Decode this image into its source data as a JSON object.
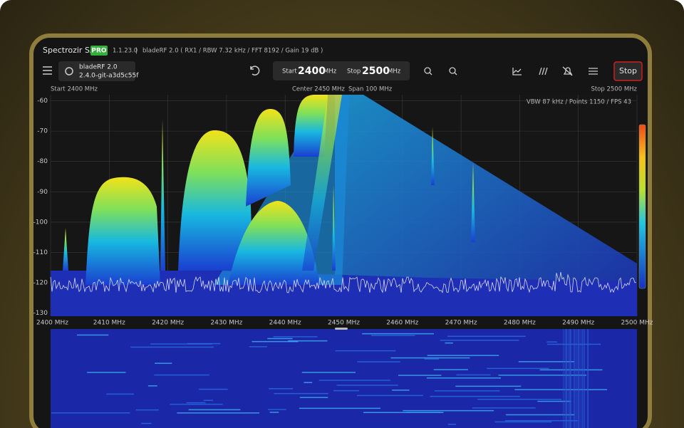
{
  "titlebar": {
    "app": "Spectrozir SA",
    "badge": "PRO",
    "version": "1.1.23.0",
    "separator": "|",
    "device_info": "bladeRF 2.0  ( RX1 / RBW 7.32 kHz / FFT 8192 / Gain 19 dB )"
  },
  "toolbar": {
    "device_name": "bladeRF 2.0",
    "device_version": "2.4.0-git-a3d5c55f",
    "start_label": "Start",
    "start_value": "2400",
    "start_unit": "MHz",
    "stop_label": "Stop",
    "stop_value": "2500",
    "stop_unit": "MHz",
    "stop_button": "Stop"
  },
  "info": {
    "start": "Start 2400 MHz",
    "center": "Center 2450 MHz",
    "span": "Span 100 MHz",
    "stop": "Stop 2500 MHz",
    "stats": "VBW 87 kHz / Points 1150 / FPS 43"
  },
  "spectrum": {
    "xlim": [
      2400,
      2500
    ],
    "ylim": [
      -131,
      -58
    ],
    "yticks": [
      -60,
      -70,
      -80,
      -90,
      -100,
      -110,
      -120,
      -130
    ],
    "xticks": [
      {
        "value": 2400,
        "label": "2400 MHz"
      },
      {
        "value": 2410,
        "label": "2410 MHz"
      },
      {
        "value": 2420,
        "label": "2420 MHz"
      },
      {
        "value": 2430,
        "label": "2430 MHz"
      },
      {
        "value": 2440,
        "label": "2440 MHz"
      },
      {
        "value": 2450,
        "label": "2450 MHz"
      },
      {
        "value": 2460,
        "label": "2460 MHz"
      },
      {
        "value": 2470,
        "label": "2470 MHz"
      },
      {
        "value": 2480,
        "label": "2480 MHz"
      },
      {
        "value": 2490,
        "label": "2490 MHz"
      },
      {
        "value": 2500,
        "label": "2500 MHz"
      }
    ],
    "grid": true
  }
}
